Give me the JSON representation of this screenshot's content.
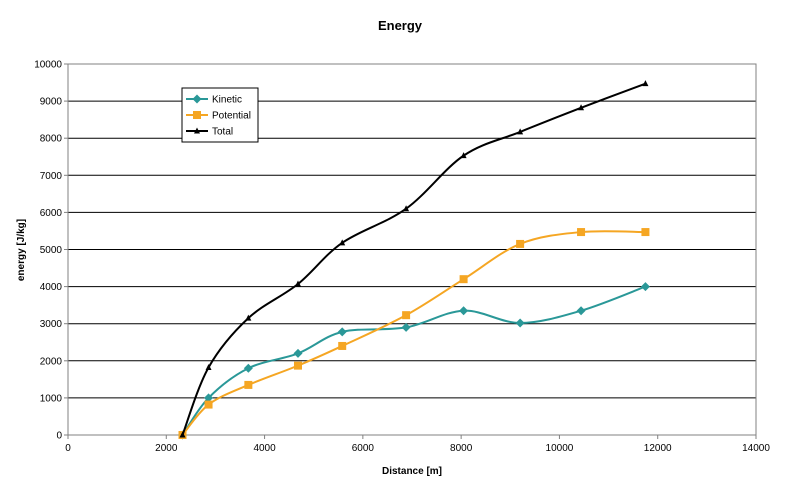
{
  "chart_data": {
    "type": "line",
    "title": "Energy",
    "xlabel": "Distance [m]",
    "ylabel": "energy [J/kg]",
    "xlim": [
      0,
      14000
    ],
    "ylim": [
      0,
      10000
    ],
    "xticks": [
      0,
      2000,
      4000,
      6000,
      8000,
      10000,
      12000,
      14000
    ],
    "yticks": [
      0,
      1000,
      2000,
      3000,
      4000,
      5000,
      6000,
      7000,
      8000,
      9000,
      10000
    ],
    "xtick_labels": [
      "0",
      "2000",
      "4000",
      "6000",
      "8000",
      "10000",
      "12000",
      "14000"
    ],
    "ytick_labels": [
      "0",
      "1000",
      "2000",
      "3000",
      "4000",
      "5000",
      "6000",
      "7000",
      "8000",
      "9000",
      "10000"
    ],
    "grid": "horizontal",
    "legend_position": "top-left",
    "series": [
      {
        "name": "Kinetic",
        "color": "#2a9898",
        "marker": "diamond",
        "x": [
          2330,
          2860,
          3670,
          4680,
          5580,
          6880,
          8050,
          9200,
          10440,
          11750
        ],
        "y": [
          0,
          1000,
          1800,
          2200,
          2780,
          2900,
          3350,
          3020,
          3350,
          4000
        ]
      },
      {
        "name": "Potential",
        "color": "#f5a623",
        "marker": "square",
        "x": [
          2330,
          2860,
          3670,
          4680,
          5580,
          6880,
          8050,
          9200,
          10440,
          11750
        ],
        "y": [
          0,
          820,
          1350,
          1870,
          2400,
          3230,
          4200,
          5150,
          5470,
          5470
        ]
      },
      {
        "name": "Total",
        "color": "#000000",
        "marker": "triangle",
        "x": [
          2330,
          2860,
          3670,
          4680,
          5580,
          6880,
          8050,
          9200,
          10440,
          11750
        ],
        "y": [
          0,
          1820,
          3150,
          4070,
          5180,
          6100,
          7530,
          8170,
          8820,
          9470
        ]
      }
    ]
  }
}
